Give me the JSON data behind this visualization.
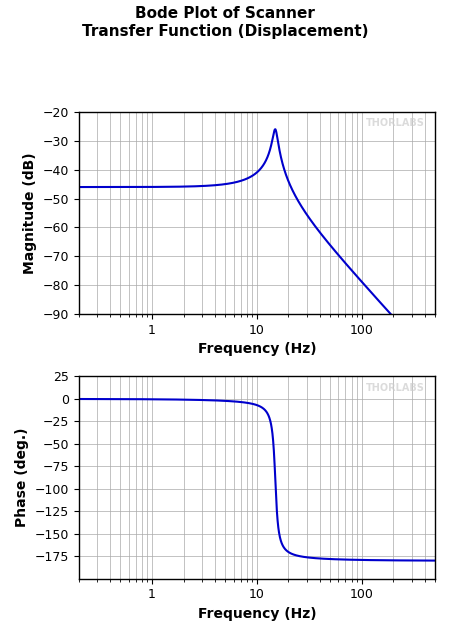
{
  "title_line1": "Bode Plot of Scanner",
  "title_line2": "Transfer Function (Displacement)",
  "xlabel": "Frequency (Hz)",
  "ylabel_mag": "Magnitude (dB)",
  "ylabel_phase": "Phase (deg.)",
  "watermark": "THORLABS",
  "freq_min": 0.2,
  "freq_max": 500,
  "mag_ylim": [
    -90,
    -20
  ],
  "mag_yticks": [
    -90,
    -80,
    -70,
    -60,
    -50,
    -40,
    -30,
    -20
  ],
  "phase_ylim": [
    -200,
    25
  ],
  "phase_yticks": [
    -175,
    -150,
    -125,
    -100,
    -75,
    -50,
    -25,
    0,
    25
  ],
  "line_color": "#0000cc",
  "bg_color": "#ffffff",
  "grid_color": "#aaaaaa",
  "title_color": "#000000",
  "watermark_color": "#cccccc",
  "fn": 15,
  "zeta": 0.05,
  "dc_gain_db": -46
}
